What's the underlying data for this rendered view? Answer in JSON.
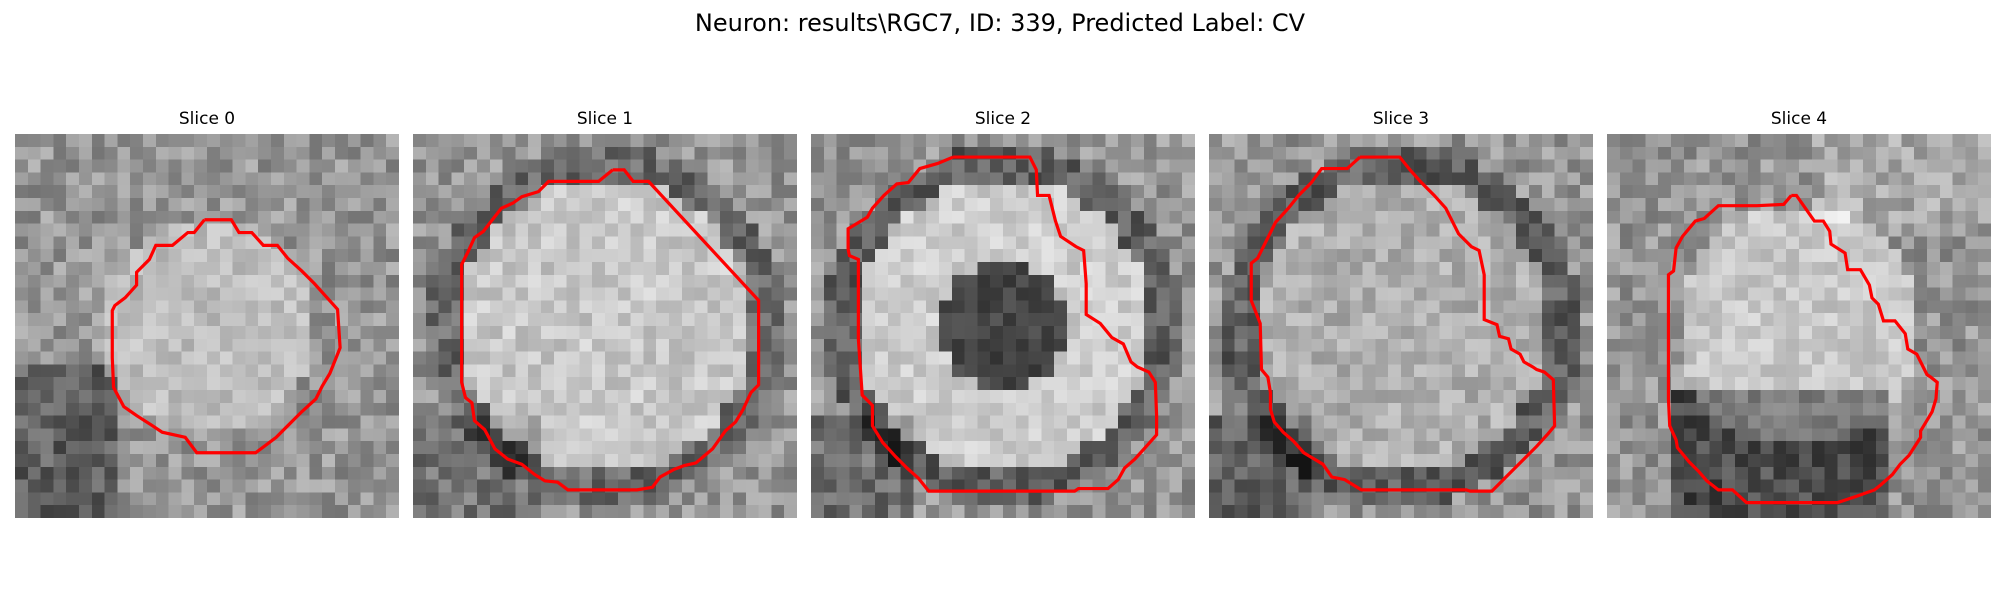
{
  "figure": {
    "title": "Neuron: results\\RGC7, ID: 339, Predicted Label: CV",
    "contour_color": "#ff0000",
    "colormap": "gray"
  },
  "panels": [
    {
      "title": "Slice 0",
      "seed": 11,
      "style": "nucleus_dark_bottom"
    },
    {
      "title": "Slice 1",
      "seed": 23,
      "style": "cell_bright"
    },
    {
      "title": "Slice 2",
      "seed": 37,
      "style": "ring_dark_center"
    },
    {
      "title": "Slice 3",
      "seed": 41,
      "style": "cell_ring"
    },
    {
      "title": "Slice 4",
      "seed": 53,
      "style": "cell_dark_bottom"
    }
  ]
}
